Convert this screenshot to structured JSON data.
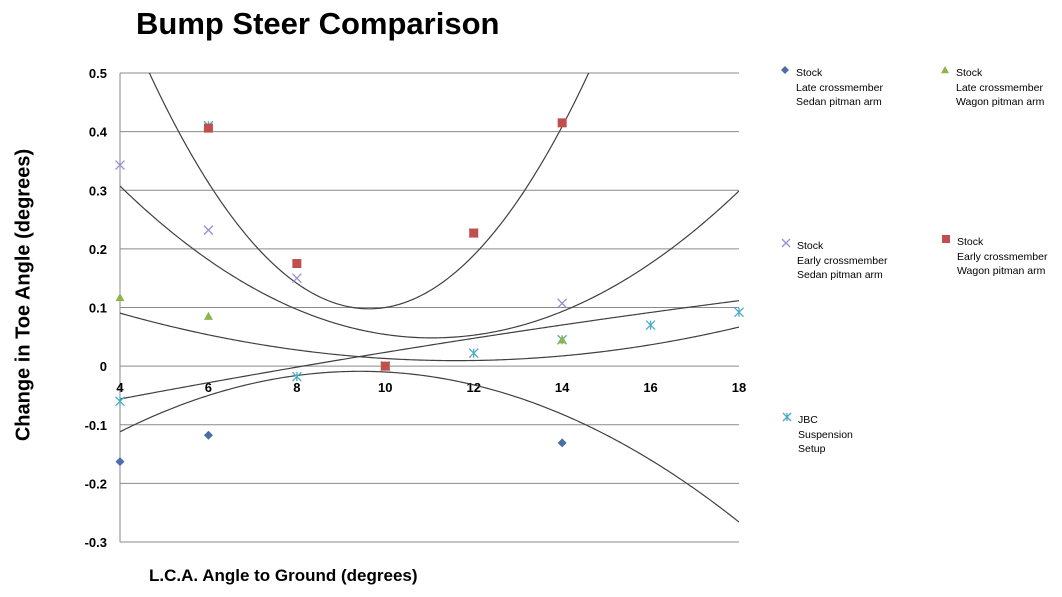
{
  "chart_data": {
    "type": "scatter",
    "title": "Bump Steer Comparison",
    "xlabel": "L.C.A. Angle to Ground (degrees)",
    "ylabel": "Change in Toe Angle (degrees)",
    "xlim": [
      4,
      18
    ],
    "ylim": [
      -0.3,
      0.5
    ],
    "x_ticks": [
      "4",
      "6",
      "8",
      "10",
      "12",
      "14",
      "16",
      "18"
    ],
    "y_ticks": [
      "0.5",
      "0.4",
      "0.3",
      "0.2",
      "0.1",
      "0",
      "-0.1",
      "-0.2",
      "-0.3"
    ],
    "grid": "horizontal",
    "series": [
      {
        "name": "Stock Late crossmember Sedan pitman arm",
        "legend_lines": [
          "Stock",
          "Late crossmember",
          "Sedan pitman arm"
        ],
        "marker": "diamond",
        "color": "#4a6fa5",
        "points": [
          [
            4,
            -0.163
          ],
          [
            6,
            -0.118
          ],
          [
            8,
            0.175
          ],
          [
            10,
            0.0
          ],
          [
            12,
            0.227
          ],
          [
            14,
            -0.131
          ]
        ],
        "trendline": [
          -0.0035,
          0.066,
          -0.32
        ]
      },
      {
        "name": "Stock Late crossmember Wagon pitman arm",
        "legend_lines": [
          "Stock",
          "Late crossmember",
          "Wagon pitman arm"
        ],
        "marker": "triangle",
        "color": "#8db54b",
        "points": [
          [
            4,
            0.117
          ],
          [
            6,
            0.085
          ],
          [
            8,
            0.175
          ],
          [
            10,
            0.0
          ],
          [
            14,
            0.045
          ]
        ],
        "trendline": [
          0.0014,
          -0.0325,
          0.198
        ]
      },
      {
        "name": "Stock Early crossmember Sedan pitman arm",
        "legend_lines": [
          "Stock",
          "Early crossmember",
          "Sedan pitman arm"
        ],
        "marker": "x",
        "color": "#9b8fd0",
        "points": [
          [
            4,
            0.343
          ],
          [
            6,
            0.232
          ],
          [
            8,
            0.15
          ],
          [
            10,
            0.0
          ],
          [
            12,
            0.227
          ],
          [
            14,
            0.107
          ]
        ],
        "trendline": [
          0.0052,
          -0.115,
          0.684
        ]
      },
      {
        "name": "Stock Early crossmember Wagon pitman arm",
        "legend_lines": [
          "Stock",
          "Early crossmember",
          "Wagon pitman arm"
        ],
        "marker": "square",
        "color": "#c0504d",
        "points": [
          [
            6,
            0.406
          ],
          [
            8,
            0.175
          ],
          [
            10,
            0.0
          ],
          [
            12,
            0.227
          ],
          [
            14,
            0.415
          ]
        ],
        "trendline": [
          0.0163,
          -0.314,
          1.61
        ]
      },
      {
        "name": "JBC Suspension Setup",
        "legend_lines": [
          "JBC",
          "Suspension",
          "Setup"
        ],
        "marker": "star",
        "color": "#4bacc6",
        "points": [
          [
            4,
            -0.06
          ],
          [
            6,
            0.41
          ],
          [
            8,
            -0.018
          ],
          [
            10,
            0.0
          ],
          [
            12,
            0.022
          ],
          [
            14,
            0.045
          ],
          [
            16,
            0.07
          ],
          [
            18,
            0.092
          ]
        ],
        "trendline": [
          -0.00016,
          0.0155,
          -0.1155
        ]
      }
    ]
  }
}
